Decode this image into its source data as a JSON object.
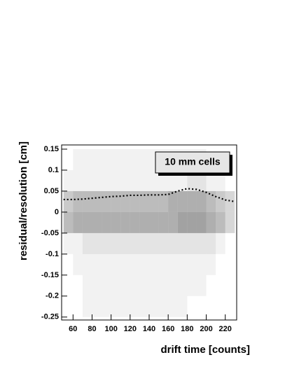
{
  "chart_data": {
    "type": "heatmap",
    "xlabel": "drift time [counts]",
    "ylabel": "residual/resolution [cm]",
    "annotation": "10 mm cells",
    "xlim": [
      48,
      232
    ],
    "ylim": [
      -0.257,
      0.16
    ],
    "xticks": [
      60,
      80,
      100,
      120,
      140,
      160,
      180,
      200,
      220
    ],
    "yticks": [
      0.15,
      0.1,
      0.05,
      0,
      -0.05,
      -0.1,
      -0.15,
      -0.2,
      -0.25
    ],
    "x_bins": [
      50,
      60,
      70,
      80,
      90,
      100,
      110,
      120,
      130,
      140,
      150,
      160,
      170,
      180,
      190,
      200,
      210,
      220,
      230
    ],
    "y_bins": [
      0.15,
      0.1,
      0.05,
      0,
      -0.05,
      -0.1,
      -0.15,
      -0.2,
      -0.25
    ],
    "z": [
      [
        0,
        1,
        1,
        1,
        1,
        1,
        1,
        1,
        1,
        1,
        1,
        1,
        1,
        1,
        1,
        0,
        0,
        0
      ],
      [
        1,
        1,
        1,
        1,
        1,
        1,
        1,
        1,
        1,
        1,
        1,
        1,
        1,
        2,
        2,
        1,
        1,
        0
      ],
      [
        4,
        5,
        5,
        5,
        5,
        5,
        5,
        5,
        5,
        5,
        5,
        6,
        6,
        6,
        6,
        5,
        4,
        3
      ],
      [
        5,
        6,
        6,
        6,
        6,
        6,
        6,
        6,
        6,
        6,
        6,
        6,
        7,
        7,
        7,
        6,
        5,
        3
      ],
      [
        1,
        1,
        2,
        2,
        2,
        2,
        2,
        2,
        2,
        2,
        2,
        2,
        2,
        2,
        2,
        2,
        1,
        0
      ],
      [
        0,
        1,
        1,
        1,
        1,
        1,
        1,
        1,
        1,
        1,
        1,
        1,
        1,
        1,
        1,
        1,
        0,
        0
      ],
      [
        0,
        0,
        1,
        1,
        1,
        1,
        1,
        1,
        1,
        1,
        1,
        1,
        1,
        1,
        1,
        0,
        0,
        0
      ],
      [
        0,
        0,
        1,
        1,
        1,
        1,
        1,
        1,
        1,
        1,
        1,
        1,
        1,
        0,
        0,
        0,
        0,
        0
      ]
    ],
    "color": "#555555",
    "profile": {
      "color": "#000000",
      "x": [
        50,
        60,
        70,
        80,
        90,
        100,
        110,
        120,
        130,
        140,
        150,
        160,
        170,
        180,
        190,
        200,
        210,
        220,
        230
      ],
      "values": [
        0.03,
        0.03,
        0.031,
        0.033,
        0.035,
        0.037,
        0.038,
        0.04,
        0.04,
        0.041,
        0.041,
        0.042,
        0.05,
        0.056,
        0.054,
        0.047,
        0.037,
        0.029,
        0.025
      ]
    }
  }
}
